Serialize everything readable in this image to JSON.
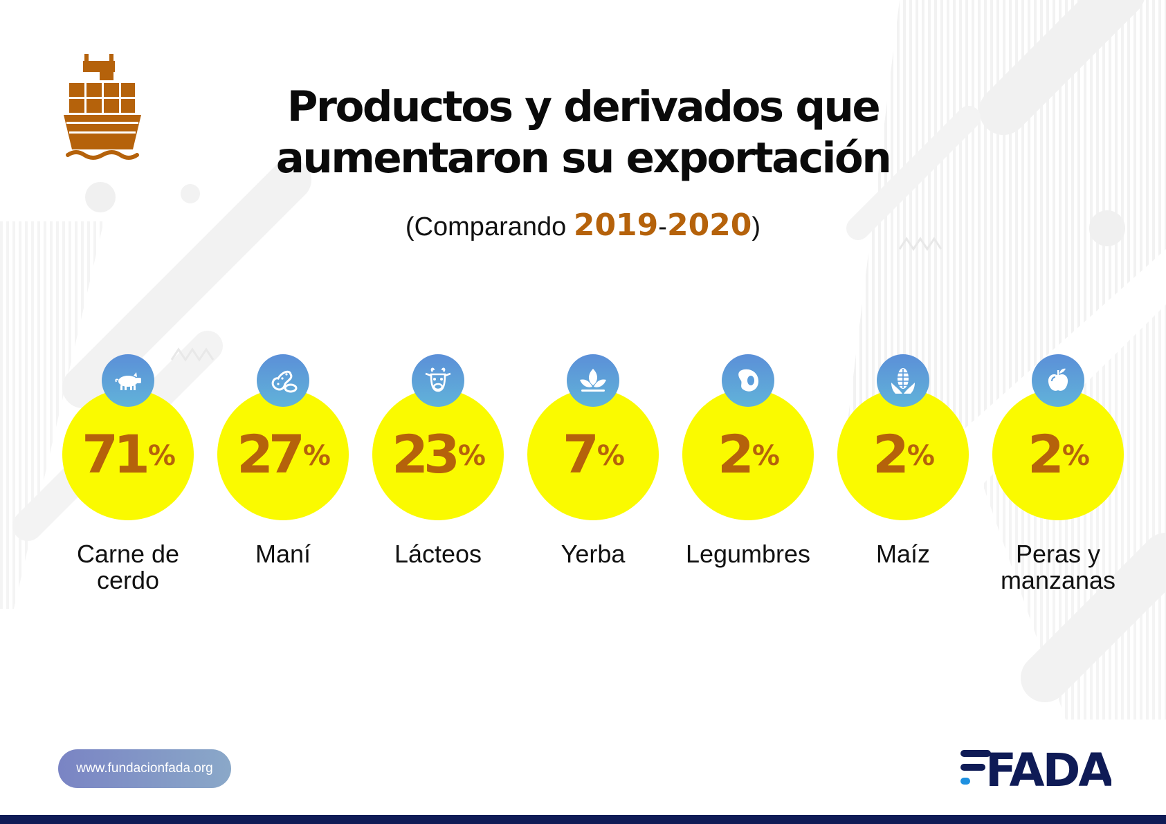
{
  "title_lines": [
    "Productos y derivados que",
    "aumentaron su exportación"
  ],
  "subtitle": {
    "prefix": "(Comparando ",
    "year_start": "2019",
    "separator": "-",
    "year_end": "2020",
    "suffix": ")"
  },
  "products": [
    {
      "value": "71",
      "unit": "%",
      "label": "Carne de cerdo",
      "icon": "pig-icon"
    },
    {
      "value": "27",
      "unit": "%",
      "label": "Maní",
      "icon": "peanut-icon"
    },
    {
      "value": "23",
      "unit": "%",
      "label": "Lácteos",
      "icon": "cow-icon"
    },
    {
      "value": "7",
      "unit": "%",
      "label": "Yerba",
      "icon": "leaves-icon"
    },
    {
      "value": "2",
      "unit": "%",
      "label": "Legumbres",
      "icon": "bean-icon"
    },
    {
      "value": "2",
      "unit": "%",
      "label": "Maíz",
      "icon": "corn-icon"
    },
    {
      "value": "2",
      "unit": "%",
      "label": "Peras y manzanas",
      "icon": "apple-icon"
    }
  ],
  "footer": {
    "url": "www.fundacionfada.org",
    "logo_text": "FADA"
  },
  "colors": {
    "accent_brown": "#b5620b",
    "highlight_yellow": "#fafa00",
    "icon_blue": "#5b9ddb",
    "brand_navy": "#0f1b56",
    "brand_blue": "#1e90e0"
  }
}
